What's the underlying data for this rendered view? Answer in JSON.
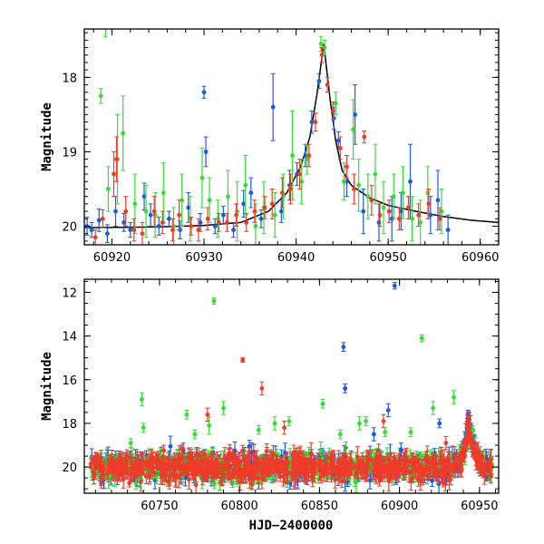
{
  "chart_data": [
    {
      "type": "scatter",
      "title": "",
      "xlabel": "",
      "ylabel": "Magnitude",
      "xlim": [
        60917,
        60962
      ],
      "ylim": [
        20.25,
        17.35
      ],
      "y_inverted": true,
      "xticks": [
        60920,
        60930,
        60940,
        60950,
        60960
      ],
      "yticks": [
        18,
        19,
        20
      ],
      "model_curve": {
        "color": "#000000",
        "peak_x": 60943.0,
        "peak_mag": 17.55,
        "points": [
          [
            60917,
            20.02
          ],
          [
            60925,
            20.01
          ],
          [
            60930,
            19.99
          ],
          [
            60934,
            19.95
          ],
          [
            60937,
            19.8
          ],
          [
            60939,
            19.55
          ],
          [
            60940.5,
            19.2
          ],
          [
            60941.5,
            18.8
          ],
          [
            60942.3,
            18.2
          ],
          [
            60943.0,
            17.55
          ],
          [
            60943.7,
            18.3
          ],
          [
            60944.3,
            18.85
          ],
          [
            60945,
            19.25
          ],
          [
            60946,
            19.45
          ],
          [
            60948,
            19.62
          ],
          [
            60950,
            19.72
          ],
          [
            60953,
            19.8
          ],
          [
            60956,
            19.87
          ],
          [
            60959,
            19.92
          ],
          [
            60962,
            19.95
          ]
        ]
      },
      "series": [
        {
          "name": "",
          "color": "#1a5ae0",
          "points": [
            [
              60917.3,
              20.0,
              0.12
            ],
            [
              60917.8,
              20.05,
              0.1
            ],
            [
              60918.6,
              19.92,
              0.15
            ],
            [
              60919.5,
              20.1,
              0.12
            ],
            [
              60920.4,
              19.8,
              0.2
            ],
            [
              60921.3,
              19.95,
              0.12
            ],
            [
              60922.0,
              20.05,
              0.1
            ],
            [
              60923.5,
              19.6,
              0.18
            ],
            [
              60924.2,
              19.85,
              0.15
            ],
            [
              60925.1,
              20.0,
              0.12
            ],
            [
              60926.2,
              19.9,
              0.1
            ],
            [
              60927.4,
              20.05,
              0.12
            ],
            [
              60928.3,
              19.75,
              0.2
            ],
            [
              60929.6,
              19.95,
              0.12
            ],
            [
              60930.0,
              18.2,
              0.08
            ],
            [
              60930.2,
              19.0,
              0.2
            ],
            [
              60931.2,
              20.0,
              0.1
            ],
            [
              60932.1,
              19.85,
              0.12
            ],
            [
              60933.2,
              20.05,
              0.1
            ],
            [
              60934.3,
              19.7,
              0.18
            ],
            [
              60935.1,
              19.55,
              0.2
            ],
            [
              60936.2,
              19.9,
              0.12
            ],
            [
              60937.5,
              18.4,
              0.45
            ],
            [
              60938.4,
              19.8,
              0.15
            ],
            [
              60939.3,
              19.45,
              0.2
            ],
            [
              60940.1,
              19.3,
              0.15
            ],
            [
              60941.0,
              19.05,
              0.15
            ],
            [
              60941.7,
              18.6,
              0.15
            ],
            [
              60942.5,
              18.05,
              0.1
            ],
            [
              60944.1,
              18.55,
              0.15
            ],
            [
              60944.6,
              18.85,
              0.12
            ],
            [
              60945.5,
              19.4,
              0.2
            ],
            [
              60946.4,
              18.5,
              0.4
            ],
            [
              60947.3,
              19.8,
              0.3
            ],
            [
              60949.0,
              19.95,
              0.25
            ],
            [
              60950.4,
              19.9,
              0.3
            ],
            [
              60951.4,
              19.8,
              0.25
            ],
            [
              60952.4,
              19.4,
              0.5
            ],
            [
              60954.6,
              19.85,
              0.25
            ],
            [
              60955.4,
              19.65,
              0.4
            ],
            [
              60956.5,
              20.05,
              0.2
            ]
          ]
        },
        {
          "name": "",
          "color": "#33dd33",
          "points": [
            [
              60918.8,
              18.25,
              0.1
            ],
            [
              60919.3,
              17.3,
              0.15
            ],
            [
              60919.6,
              19.5,
              0.3
            ],
            [
              60920.6,
              19.1,
              0.6
            ],
            [
              60921.2,
              18.75,
              0.5
            ],
            [
              60922.5,
              19.7,
              0.4
            ],
            [
              60923.7,
              19.8,
              0.35
            ],
            [
              60924.7,
              19.85,
              0.3
            ],
            [
              60925.6,
              19.55,
              0.4
            ],
            [
              60926.7,
              20.0,
              0.25
            ],
            [
              60927.6,
              19.65,
              0.35
            ],
            [
              60928.5,
              19.9,
              0.3
            ],
            [
              60929.8,
              19.35,
              0.4
            ],
            [
              60930.6,
              19.65,
              0.3
            ],
            [
              60931.5,
              19.9,
              0.25
            ],
            [
              60932.6,
              19.6,
              0.35
            ],
            [
              60933.6,
              19.8,
              0.4
            ],
            [
              60934.5,
              19.45,
              0.4
            ],
            [
              60935.6,
              20.0,
              0.3
            ],
            [
              60936.5,
              19.75,
              0.35
            ],
            [
              60937.7,
              19.85,
              0.3
            ],
            [
              60938.6,
              19.6,
              0.3
            ],
            [
              60939.6,
              19.05,
              0.6
            ],
            [
              60940.6,
              19.4,
              0.3
            ],
            [
              60941.2,
              19.1,
              0.2
            ],
            [
              60942.7,
              17.55,
              0.1
            ],
            [
              60943.1,
              17.6,
              0.1
            ],
            [
              60944.3,
              18.35,
              0.15
            ],
            [
              60945.2,
              19.4,
              0.25
            ],
            [
              60946.2,
              18.7,
              0.4
            ],
            [
              60946.8,
              19.45,
              0.35
            ],
            [
              60947.8,
              19.6,
              0.3
            ],
            [
              60948.6,
              19.3,
              0.4
            ],
            [
              60949.5,
              19.75,
              0.35
            ],
            [
              60950.6,
              19.6,
              0.3
            ],
            [
              60951.6,
              19.55,
              0.35
            ],
            [
              60952.6,
              19.9,
              0.3
            ],
            [
              60953.5,
              19.95,
              0.3
            ],
            [
              60954.3,
              19.55,
              0.35
            ],
            [
              60955.8,
              19.8,
              0.3
            ]
          ]
        },
        {
          "name": "",
          "color": "#f03a2a",
          "points": [
            [
              60918.2,
              20.15,
              0.1
            ],
            [
              60919.0,
              19.9,
              0.12
            ],
            [
              60920.2,
              19.3,
              0.3
            ],
            [
              60920.5,
              19.1,
              0.3
            ],
            [
              60921.5,
              19.8,
              0.2
            ],
            [
              60922.4,
              20.05,
              0.15
            ],
            [
              60923.3,
              20.1,
              0.15
            ],
            [
              60924.6,
              19.8,
              0.2
            ],
            [
              60925.5,
              19.95,
              0.15
            ],
            [
              60926.6,
              20.05,
              0.15
            ],
            [
              60927.3,
              19.85,
              0.2
            ],
            [
              60928.6,
              20.0,
              0.12
            ],
            [
              60929.4,
              20.05,
              0.15
            ],
            [
              60930.4,
              19.9,
              0.15
            ],
            [
              60931.6,
              19.95,
              0.12
            ],
            [
              60932.5,
              19.95,
              0.12
            ],
            [
              60933.5,
              19.85,
              0.15
            ],
            [
              60934.6,
              19.95,
              0.12
            ],
            [
              60935.5,
              19.8,
              0.15
            ],
            [
              60936.6,
              19.75,
              0.15
            ],
            [
              60937.4,
              19.7,
              0.2
            ],
            [
              60938.5,
              19.55,
              0.2
            ],
            [
              60939.4,
              19.5,
              0.2
            ],
            [
              60940.4,
              19.3,
              0.2
            ],
            [
              60941.4,
              19.05,
              0.15
            ],
            [
              60942.1,
              18.6,
              0.12
            ],
            [
              60942.8,
              17.7,
              0.1
            ],
            [
              60943.4,
              18.1,
              0.1
            ],
            [
              60944.0,
              18.45,
              0.12
            ],
            [
              60944.8,
              18.95,
              0.15
            ],
            [
              60945.5,
              19.2,
              0.15
            ],
            [
              60946.3,
              19.5,
              0.2
            ],
            [
              60947.4,
              18.8,
              0.08
            ],
            [
              60948.2,
              19.65,
              0.2
            ],
            [
              60949.1,
              19.85,
              0.15
            ],
            [
              60950.1,
              19.8,
              0.15
            ],
            [
              60951.2,
              19.9,
              0.15
            ],
            [
              60952.2,
              19.75,
              0.15
            ],
            [
              60953.3,
              19.85,
              0.15
            ],
            [
              60954.4,
              19.7,
              0.2
            ],
            [
              60955.6,
              19.9,
              0.15
            ]
          ]
        }
      ]
    },
    {
      "type": "scatter",
      "title": "",
      "xlabel": "HJD−2400000",
      "ylabel": "Magnitude",
      "xlim": [
        60703,
        60962
      ],
      "ylim": [
        21.2,
        11.4
      ],
      "y_inverted": true,
      "xticks": [
        60750,
        60800,
        60850,
        60900,
        60950
      ],
      "yticks": [
        12,
        14,
        16,
        18,
        20
      ],
      "baseline_mag": 20.0,
      "outbursts": [
        60943
      ],
      "series": [
        {
          "name": "",
          "color": "#1a5ae0",
          "outliers": [
            [
              60897,
              11.7,
              0.15
            ],
            [
              60865,
              14.5,
              0.2
            ],
            [
              60866,
              16.4,
              0.2
            ],
            [
              60884,
              18.5,
              0.3
            ],
            [
              60893,
              17.4,
              0.3
            ],
            [
              60901,
              19.2,
              0.3
            ],
            [
              60925,
              18.0,
              0.2
            ],
            [
              60943,
              17.6,
              0.2
            ]
          ]
        },
        {
          "name": "",
          "color": "#33dd33",
          "outliers": [
            [
              60784,
              12.4,
              0.15
            ],
            [
              60914,
              14.1,
              0.15
            ],
            [
              60739,
              16.9,
              0.3
            ],
            [
              60740,
              18.2,
              0.2
            ],
            [
              60732,
              18.9,
              0.2
            ],
            [
              60767,
              17.6,
              0.2
            ],
            [
              60772,
              18.5,
              0.2
            ],
            [
              60781,
              18.1,
              0.4
            ],
            [
              60790,
              17.3,
              0.3
            ],
            [
              60812,
              18.3,
              0.2
            ],
            [
              60822,
              18.0,
              0.3
            ],
            [
              60831,
              17.9,
              0.2
            ],
            [
              60852,
              17.1,
              0.2
            ],
            [
              60863,
              18.5,
              0.2
            ],
            [
              60875,
              18.0,
              0.3
            ],
            [
              60879,
              17.9,
              0.2
            ],
            [
              60891,
              18.4,
              0.2
            ],
            [
              60907,
              18.4,
              0.2
            ],
            [
              60921,
              17.3,
              0.3
            ],
            [
              60934,
              16.8,
              0.3
            ],
            [
              60946,
              18.3,
              0.2
            ]
          ]
        },
        {
          "name": "",
          "color": "#f03a2a",
          "outliers": [
            [
              60802,
              15.1,
              0.1
            ],
            [
              60814,
              16.4,
              0.3
            ],
            [
              60780,
              17.6,
              0.3
            ],
            [
              60828,
              18.2,
              0.3
            ],
            [
              60890,
              17.9,
              0.3
            ],
            [
              60929,
              18.9,
              0.3
            ],
            [
              60943,
              17.7,
              0.2
            ]
          ]
        }
      ]
    }
  ]
}
